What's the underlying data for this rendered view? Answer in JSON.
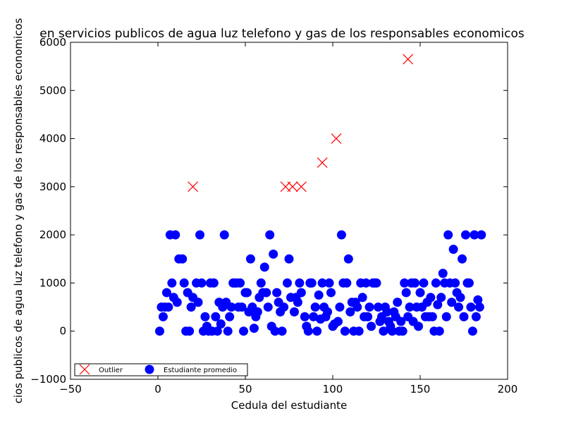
{
  "chart_data": {
    "type": "scatter",
    "title": "en servicios publicos de agua luz telefono y gas de los responsables economicos",
    "xlabel": "Cedula del estudiante",
    "ylabel": "cios publicos de agua luz telefono y gas de los responsables economicos",
    "xlim": [
      -50,
      200
    ],
    "ylim": [
      -1000,
      6000
    ],
    "xticks": [
      "−50",
      "0",
      "50",
      "100",
      "150",
      "200"
    ],
    "yticks": [
      "−1000",
      "0",
      "1000",
      "2000",
      "3000",
      "4000",
      "5000",
      "6000"
    ],
    "grid": false,
    "legend_position": "lower-left",
    "series": [
      {
        "name": "Outlier",
        "marker": "x",
        "color": "#ff0000",
        "points": [
          [
            20,
            3000
          ],
          [
            73,
            3000
          ],
          [
            77,
            3000
          ],
          [
            82,
            3000
          ],
          [
            94,
            3500
          ],
          [
            102,
            4000
          ],
          [
            143,
            5650
          ]
        ]
      },
      {
        "name": "Estudiante promedio",
        "marker": "circle",
        "color": "#0000ff",
        "points": [
          [
            1,
            0
          ],
          [
            2,
            500
          ],
          [
            3,
            300
          ],
          [
            4,
            500
          ],
          [
            5,
            800
          ],
          [
            6,
            500
          ],
          [
            7,
            2000
          ],
          [
            8,
            1000
          ],
          [
            9,
            700
          ],
          [
            10,
            2000
          ],
          [
            11,
            600
          ],
          [
            12,
            1500
          ],
          [
            14,
            1500
          ],
          [
            15,
            1000
          ],
          [
            16,
            0
          ],
          [
            17,
            800
          ],
          [
            18,
            0
          ],
          [
            19,
            500
          ],
          [
            20,
            700
          ],
          [
            22,
            1000
          ],
          [
            23,
            600
          ],
          [
            24,
            2000
          ],
          [
            25,
            1000
          ],
          [
            26,
            0
          ],
          [
            27,
            300
          ],
          [
            28,
            100
          ],
          [
            29,
            0
          ],
          [
            30,
            1000
          ],
          [
            31,
            0
          ],
          [
            32,
            1000
          ],
          [
            33,
            300
          ],
          [
            34,
            0
          ],
          [
            35,
            600
          ],
          [
            36,
            150
          ],
          [
            37,
            500
          ],
          [
            38,
            2000
          ],
          [
            39,
            600
          ],
          [
            40,
            0
          ],
          [
            41,
            300
          ],
          [
            42,
            500
          ],
          [
            43,
            1000
          ],
          [
            44,
            1000
          ],
          [
            45,
            1000
          ],
          [
            46,
            500
          ],
          [
            47,
            1000
          ],
          [
            48,
            500
          ],
          [
            49,
            0
          ],
          [
            50,
            800
          ],
          [
            51,
            800
          ],
          [
            52,
            400
          ],
          [
            53,
            1500
          ],
          [
            54,
            500
          ],
          [
            55,
            60
          ],
          [
            56,
            300
          ],
          [
            57,
            400
          ],
          [
            58,
            700
          ],
          [
            59,
            1000
          ],
          [
            60,
            800
          ],
          [
            61,
            1330
          ],
          [
            62,
            800
          ],
          [
            63,
            500
          ],
          [
            64,
            2000
          ],
          [
            65,
            100
          ],
          [
            66,
            1600
          ],
          [
            67,
            0
          ],
          [
            68,
            800
          ],
          [
            69,
            600
          ],
          [
            70,
            400
          ],
          [
            71,
            0
          ],
          [
            72,
            500
          ],
          [
            74,
            1000
          ],
          [
            75,
            1500
          ],
          [
            76,
            700
          ],
          [
            78,
            400
          ],
          [
            79,
            700
          ],
          [
            80,
            600
          ],
          [
            81,
            1000
          ],
          [
            82,
            800
          ],
          [
            84,
            300
          ],
          [
            85,
            100
          ],
          [
            86,
            0
          ],
          [
            87,
            1000
          ],
          [
            88,
            1000
          ],
          [
            89,
            300
          ],
          [
            90,
            500
          ],
          [
            91,
            0
          ],
          [
            92,
            750
          ],
          [
            93,
            250
          ],
          [
            94,
            1000
          ],
          [
            95,
            500
          ],
          [
            96,
            300
          ],
          [
            97,
            400
          ],
          [
            98,
            1000
          ],
          [
            99,
            800
          ],
          [
            100,
            100
          ],
          [
            101,
            150
          ],
          [
            103,
            200
          ],
          [
            104,
            500
          ],
          [
            105,
            2000
          ],
          [
            106,
            1000
          ],
          [
            107,
            0
          ],
          [
            108,
            1000
          ],
          [
            109,
            1500
          ],
          [
            110,
            400
          ],
          [
            111,
            600
          ],
          [
            112,
            0
          ],
          [
            113,
            600
          ],
          [
            114,
            500
          ],
          [
            115,
            0
          ],
          [
            116,
            1000
          ],
          [
            117,
            700
          ],
          [
            118,
            300
          ],
          [
            119,
            1000
          ],
          [
            120,
            300
          ],
          [
            121,
            500
          ],
          [
            122,
            100
          ],
          [
            123,
            1000
          ],
          [
            124,
            1000
          ],
          [
            125,
            1000
          ],
          [
            126,
            500
          ],
          [
            127,
            200
          ],
          [
            128,
            300
          ],
          [
            129,
            0
          ],
          [
            130,
            500
          ],
          [
            131,
            400
          ],
          [
            132,
            200
          ],
          [
            133,
            100
          ],
          [
            134,
            0
          ],
          [
            135,
            400
          ],
          [
            136,
            300
          ],
          [
            137,
            600
          ],
          [
            138,
            0
          ],
          [
            139,
            200
          ],
          [
            140,
            0
          ],
          [
            141,
            1000
          ],
          [
            142,
            800
          ],
          [
            143,
            300
          ],
          [
            144,
            500
          ],
          [
            145,
            1000
          ],
          [
            146,
            200
          ],
          [
            147,
            1000
          ],
          [
            148,
            500
          ],
          [
            149,
            100
          ],
          [
            150,
            800
          ],
          [
            151,
            500
          ],
          [
            152,
            1000
          ],
          [
            153,
            300
          ],
          [
            154,
            600
          ],
          [
            155,
            300
          ],
          [
            156,
            700
          ],
          [
            157,
            300
          ],
          [
            158,
            0
          ],
          [
            159,
            1000
          ],
          [
            160,
            550
          ],
          [
            161,
            0
          ],
          [
            162,
            700
          ],
          [
            163,
            1200
          ],
          [
            164,
            1000
          ],
          [
            165,
            300
          ],
          [
            166,
            2000
          ],
          [
            167,
            1000
          ],
          [
            168,
            600
          ],
          [
            169,
            1700
          ],
          [
            170,
            1000
          ],
          [
            171,
            800
          ],
          [
            172,
            500
          ],
          [
            173,
            700
          ],
          [
            174,
            1500
          ],
          [
            175,
            300
          ],
          [
            176,
            2000
          ],
          [
            177,
            1000
          ],
          [
            178,
            1000
          ],
          [
            179,
            500
          ],
          [
            180,
            0
          ],
          [
            181,
            2000
          ],
          [
            182,
            300
          ],
          [
            183,
            650
          ],
          [
            184,
            500
          ],
          [
            185,
            2000
          ]
        ]
      }
    ]
  }
}
